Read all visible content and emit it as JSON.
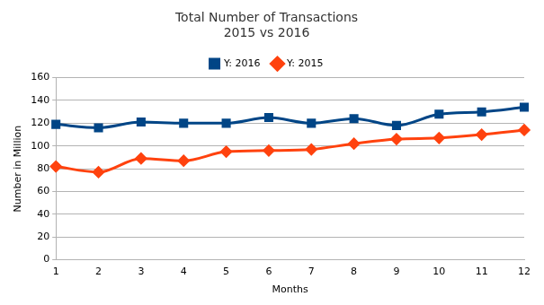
{
  "chart_data": {
    "type": "line",
    "title": [
      "Total Number of Transactions",
      "2015 vs 2016"
    ],
    "x_label": "Months",
    "y_label": "Number in Million",
    "categories": [
      "1",
      "2",
      "3",
      "4",
      "5",
      "6",
      "7",
      "8",
      "9",
      "10",
      "11",
      "12"
    ],
    "series": [
      {
        "name": "Y: 2016",
        "color": "#004586",
        "marker": "square",
        "line_style": "solid",
        "values": [
          119,
          116,
          121,
          120,
          120,
          125,
          120,
          124,
          118,
          128,
          130,
          134
        ]
      },
      {
        "name": "Y: 2015",
        "color": "#ff420e",
        "marker": "diamond",
        "line_style": "solid",
        "values": [
          82,
          77,
          89,
          87,
          95,
          96,
          97,
          102,
          106,
          107,
          110,
          114
        ]
      }
    ],
    "ylim": [
      0,
      160
    ],
    "yticks": [
      0,
      20,
      40,
      60,
      80,
      100,
      120,
      140,
      160
    ],
    "grid": true,
    "legend": "top"
  }
}
